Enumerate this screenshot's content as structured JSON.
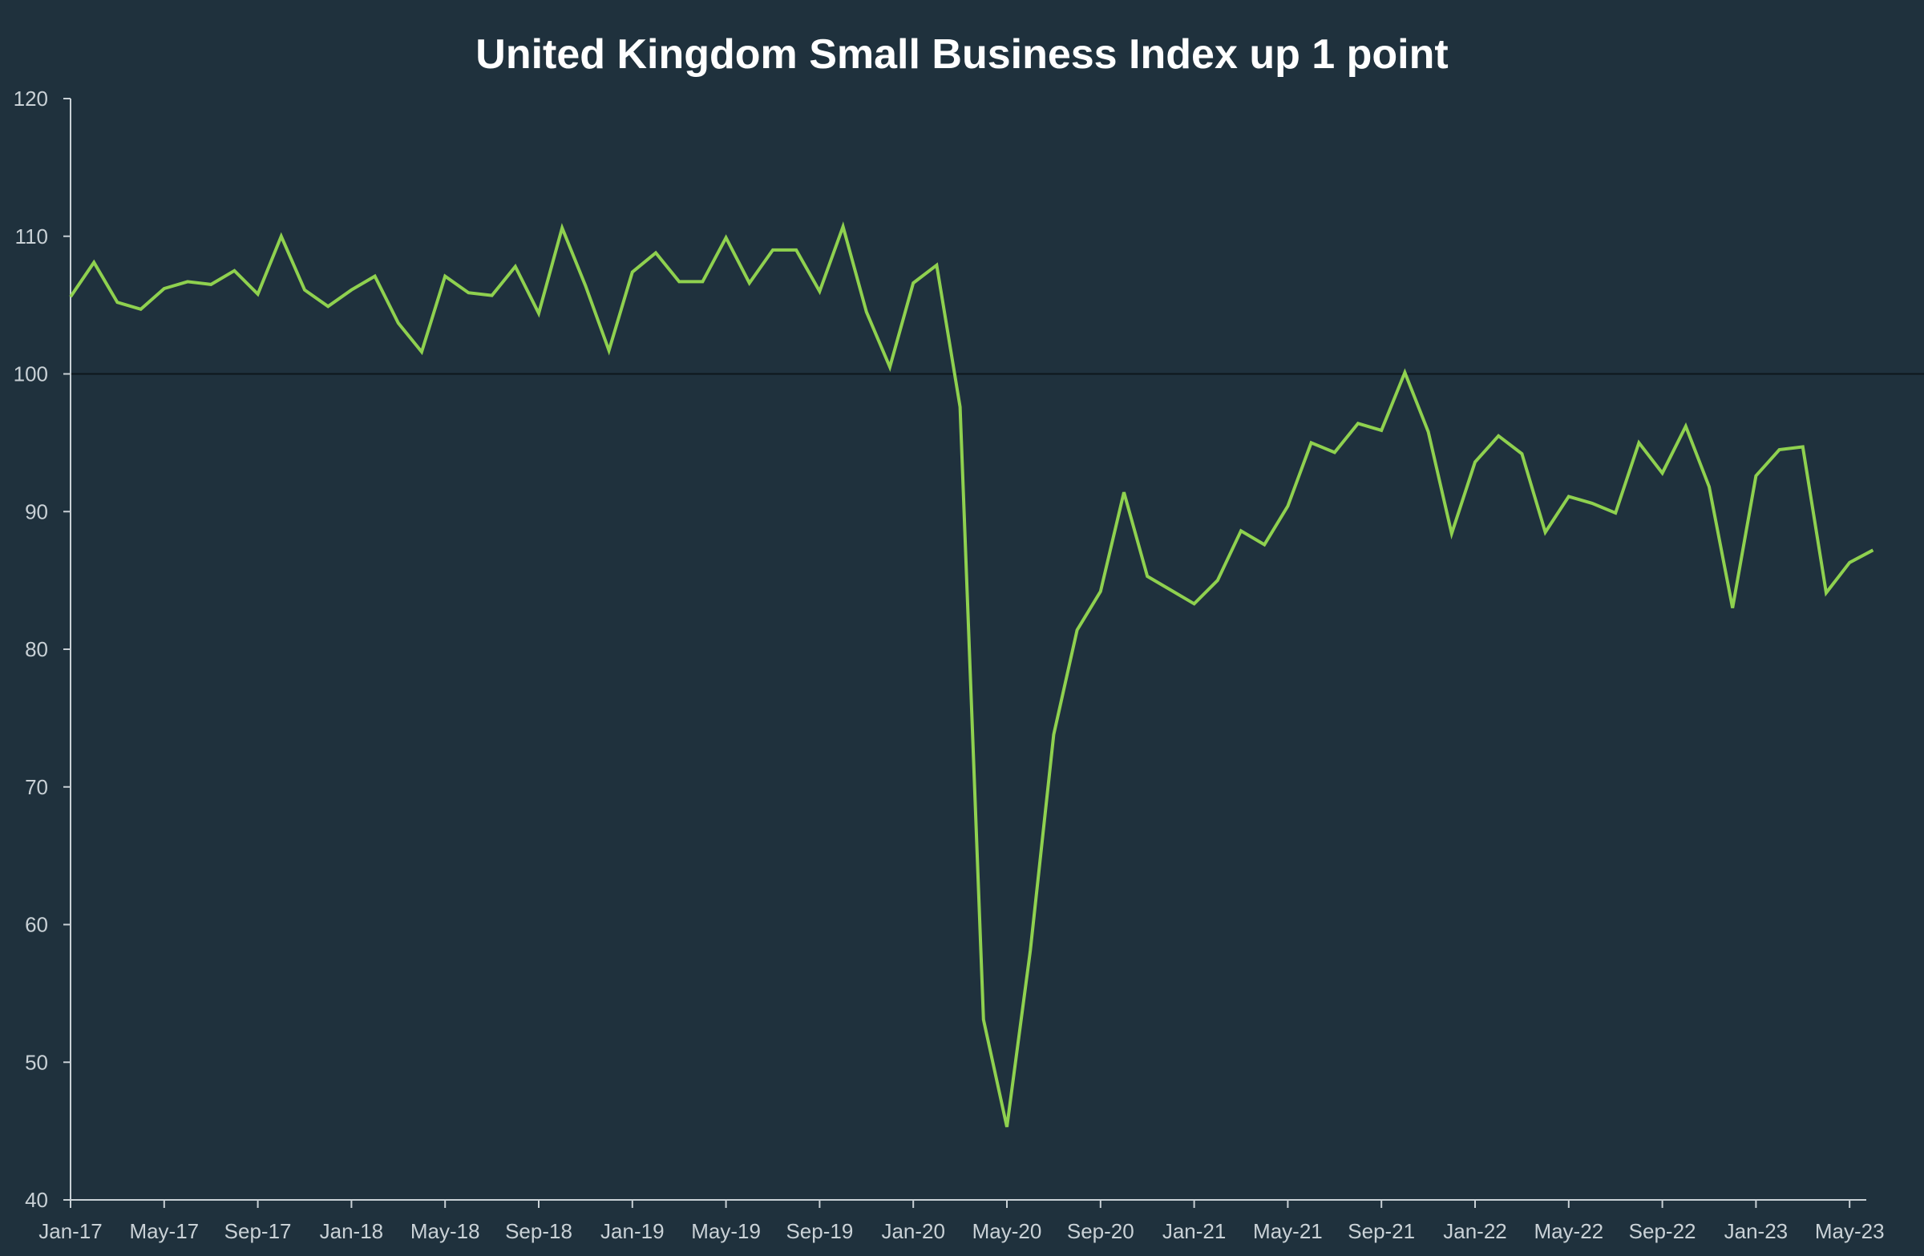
{
  "chart_data": {
    "type": "line",
    "title": "United Kingdom Small Business Index up 1 point",
    "xlabel": "",
    "ylabel": "",
    "ylim": [
      40,
      120
    ],
    "yticks": [
      40,
      50,
      60,
      70,
      80,
      90,
      100,
      110,
      120
    ],
    "reference_line": 100,
    "grid": false,
    "colors": {
      "background": "#1f313d",
      "line": "#8fd14f",
      "axis": "#c9d1d6",
      "reference": "#0d161c"
    },
    "x_tick_labels": [
      "Jan-17",
      "May-17",
      "Sep-17",
      "Jan-18",
      "May-18",
      "Sep-18",
      "Jan-19",
      "May-19",
      "Sep-19",
      "Jan-20",
      "May-20",
      "Sep-20",
      "Jan-21",
      "May-21",
      "Sep-21",
      "Jan-22",
      "May-22",
      "Sep-22",
      "Jan-23",
      "May-23"
    ],
    "series": [
      {
        "name": "United Kingdom Small Business Index",
        "x": [
          "Jan-17",
          "Feb-17",
          "Mar-17",
          "Apr-17",
          "May-17",
          "Jun-17",
          "Jul-17",
          "Aug-17",
          "Sep-17",
          "Oct-17",
          "Nov-17",
          "Dec-17",
          "Jan-18",
          "Feb-18",
          "Mar-18",
          "Apr-18",
          "May-18",
          "Jun-18",
          "Jul-18",
          "Aug-18",
          "Sep-18",
          "Oct-18",
          "Nov-18",
          "Dec-18",
          "Jan-19",
          "Feb-19",
          "Mar-19",
          "Apr-19",
          "May-19",
          "Jun-19",
          "Jul-19",
          "Aug-19",
          "Sep-19",
          "Oct-19",
          "Nov-19",
          "Dec-19",
          "Jan-20",
          "Feb-20",
          "Mar-20",
          "Apr-20",
          "May-20",
          "Jun-20",
          "Jul-20",
          "Aug-20",
          "Sep-20",
          "Oct-20",
          "Nov-20",
          "Dec-20",
          "Jan-21",
          "Feb-21",
          "Mar-21",
          "Apr-21",
          "May-21",
          "Jun-21",
          "Jul-21",
          "Aug-21",
          "Sep-21",
          "Oct-21",
          "Nov-21",
          "Dec-21",
          "Jan-22",
          "Feb-22",
          "Mar-22",
          "Apr-22",
          "May-22",
          "Jun-22",
          "Jul-22",
          "Aug-22",
          "Sep-22",
          "Oct-22",
          "Nov-22",
          "Dec-22",
          "Jan-23",
          "Feb-23",
          "Mar-23",
          "Apr-23",
          "May-23",
          "Jun-23"
        ],
        "values": [
          105.6,
          108.1,
          105.2,
          104.7,
          106.2,
          106.7,
          106.5,
          107.5,
          105.8,
          110.0,
          106.1,
          104.9,
          106.1,
          107.1,
          103.7,
          101.6,
          107.1,
          105.9,
          105.7,
          107.8,
          104.4,
          110.6,
          106.4,
          101.7,
          107.4,
          108.8,
          106.7,
          106.7,
          109.9,
          106.6,
          109.0,
          109.0,
          106.0,
          110.7,
          104.5,
          100.5,
          106.6,
          107.9,
          97.6,
          53.1,
          45.3,
          58.1,
          73.8,
          81.4,
          84.2,
          91.4,
          85.3,
          84.3,
          83.3,
          85.0,
          88.6,
          87.6,
          90.4,
          95.0,
          94.3,
          96.4,
          95.9,
          100.1,
          95.8,
          88.4,
          93.6,
          95.5,
          94.2,
          88.5,
          91.1,
          90.6,
          89.9,
          95.0,
          92.8,
          96.2,
          91.8,
          83.0,
          92.6,
          94.5,
          94.7,
          84.1,
          86.3,
          87.2
        ]
      }
    ]
  }
}
